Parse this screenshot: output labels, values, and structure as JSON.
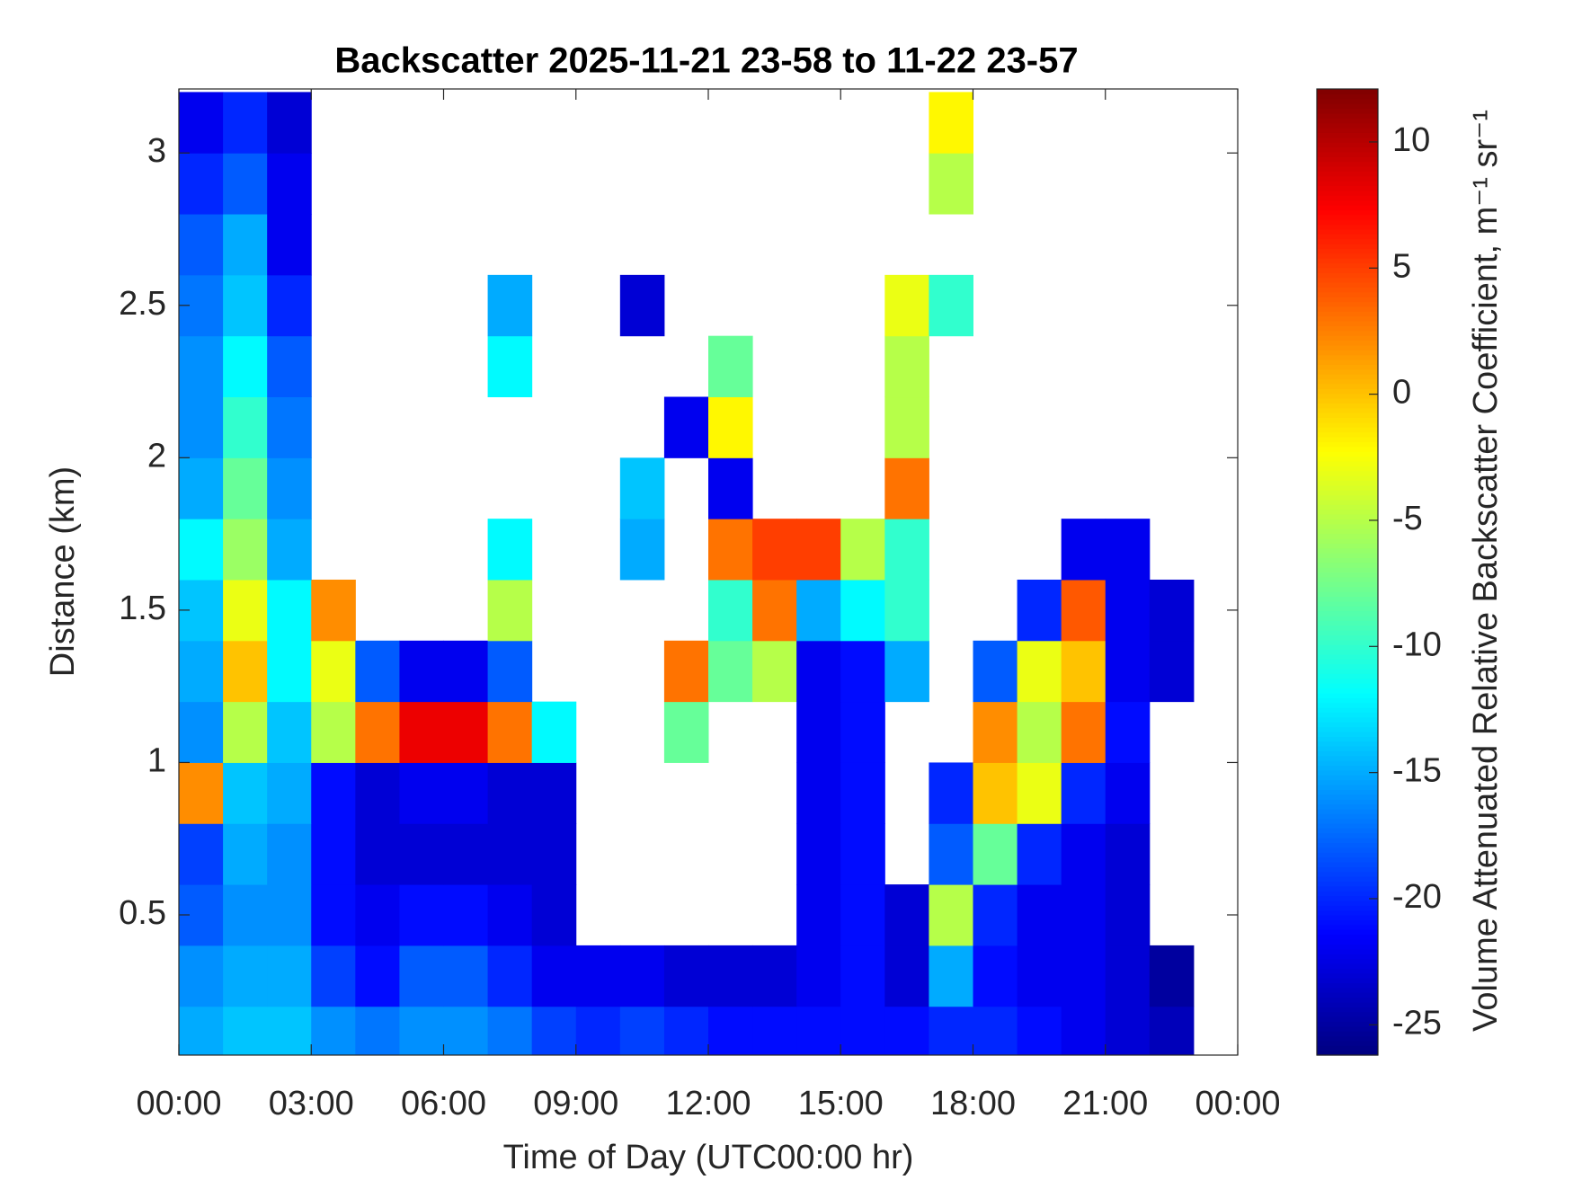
{
  "chart_data": {
    "type": "heatmap",
    "title": "Backscatter 2025-11-21 23-58 to 11-22 23-57",
    "x_label": "Time of Day (UTC00:00 hr)",
    "y_label": "Distance (km)",
    "colorbar_label": "Volume Attenuated Relative Backscatter Coefficient, m⁻¹ sr⁻¹",
    "colormap": "jet",
    "x": [
      0.5,
      1.5,
      2.5,
      3.5,
      4.5,
      5.5,
      6.5,
      7.5,
      8.5,
      9.5,
      10.5,
      11.5,
      12.5,
      13.5,
      14.5,
      15.5,
      16.5,
      17.5,
      18.5,
      19.5,
      20.5,
      21.5,
      22.5,
      23.5
    ],
    "y": [
      0.1,
      0.3,
      0.5,
      0.7,
      0.9,
      1.1,
      1.3,
      1.5,
      1.7,
      1.9,
      2.1,
      2.3,
      2.5,
      2.7,
      2.9,
      3.1
    ],
    "values": [
      [
        -15,
        -14,
        -14,
        -16,
        -17,
        -16,
        -16,
        -17,
        -19,
        -20,
        -19,
        -20,
        -21,
        -21,
        -21,
        -21,
        -21,
        -20,
        -20,
        -21,
        -22,
        -23,
        -24,
        null
      ],
      [
        -16,
        -15,
        -15,
        -19,
        -21,
        -18,
        -18,
        -20,
        -22,
        -22,
        -22,
        -23,
        -23,
        -23,
        -22,
        -21,
        -23,
        -15,
        -21,
        -22,
        -22,
        -23,
        -25,
        null
      ],
      [
        -18,
        -16,
        -16,
        -21,
        -22,
        -21,
        -21,
        -22,
        -23,
        null,
        null,
        null,
        null,
        null,
        -22,
        -21,
        -23,
        -5,
        -20,
        -22,
        -22,
        -23,
        null,
        null
      ],
      [
        -19,
        -15,
        -16,
        -21,
        -23,
        -23,
        -23,
        -23,
        -23,
        null,
        null,
        null,
        null,
        null,
        -22,
        -21,
        null,
        -18,
        -8,
        -20,
        -22,
        -23,
        null,
        null
      ],
      [
        2,
        -14,
        -15,
        -21,
        -23,
        -22,
        -22,
        -23,
        -23,
        null,
        null,
        null,
        null,
        null,
        -22,
        -21,
        null,
        -20,
        0,
        -3,
        -20,
        -22,
        null,
        null
      ],
      [
        -16,
        -5,
        -14,
        -5,
        3,
        8,
        8,
        3,
        -12,
        null,
        null,
        -8,
        null,
        null,
        -22,
        -21,
        null,
        null,
        2,
        -5,
        3,
        -21,
        null,
        null
      ],
      [
        -15,
        0,
        -12,
        -3,
        -18,
        -22,
        -22,
        -18,
        null,
        null,
        null,
        3,
        -8,
        -5,
        -22,
        -21,
        -15,
        null,
        -18,
        -3,
        0,
        -22,
        -23,
        null
      ],
      [
        -14,
        -3,
        -12,
        2,
        null,
        null,
        null,
        -5,
        null,
        null,
        null,
        null,
        -10,
        3,
        -15,
        -12,
        -10,
        null,
        null,
        -20,
        4,
        -22,
        -23,
        null
      ],
      [
        -12,
        -6,
        -15,
        null,
        null,
        null,
        null,
        -12,
        null,
        null,
        -15,
        null,
        3,
        5,
        5,
        -5,
        -10,
        null,
        null,
        null,
        -22,
        -22,
        null,
        null
      ],
      [
        -15,
        -8,
        -16,
        null,
        null,
        null,
        null,
        null,
        null,
        null,
        -14,
        null,
        -22,
        null,
        null,
        null,
        3,
        null,
        null,
        null,
        null,
        null,
        null,
        null
      ],
      [
        -16,
        -10,
        -17,
        null,
        null,
        null,
        null,
        null,
        null,
        null,
        null,
        -22,
        -2,
        null,
        null,
        null,
        -5,
        null,
        null,
        null,
        null,
        null,
        null,
        null
      ],
      [
        -16,
        -12,
        -18,
        null,
        null,
        null,
        null,
        -12,
        null,
        null,
        null,
        null,
        -8,
        null,
        null,
        null,
        -5,
        null,
        null,
        null,
        null,
        null,
        null,
        null
      ],
      [
        -17,
        -14,
        -20,
        null,
        null,
        null,
        null,
        -15,
        null,
        null,
        -23,
        null,
        null,
        null,
        null,
        null,
        -3,
        -10,
        null,
        null,
        null,
        null,
        null,
        null
      ],
      [
        -18,
        -15,
        -22,
        null,
        null,
        null,
        null,
        null,
        null,
        null,
        null,
        null,
        null,
        null,
        null,
        null,
        null,
        null,
        null,
        null,
        null,
        null,
        null,
        null
      ],
      [
        -20,
        -18,
        -22,
        null,
        null,
        null,
        null,
        null,
        null,
        null,
        null,
        null,
        null,
        null,
        null,
        null,
        null,
        -5,
        null,
        null,
        null,
        null,
        null,
        null
      ],
      [
        -22,
        -20,
        -23,
        null,
        null,
        null,
        null,
        null,
        null,
        null,
        null,
        null,
        null,
        null,
        null,
        null,
        null,
        -2,
        null,
        null,
        null,
        null,
        null,
        null
      ]
    ],
    "xlim": [
      0,
      24
    ],
    "xticks": [
      {
        "value": 0,
        "label": "00:00"
      },
      {
        "value": 3,
        "label": "03:00"
      },
      {
        "value": 6,
        "label": "06:00"
      },
      {
        "value": 9,
        "label": "09:00"
      },
      {
        "value": 12,
        "label": "12:00"
      },
      {
        "value": 15,
        "label": "15:00"
      },
      {
        "value": 18,
        "label": "18:00"
      },
      {
        "value": 21,
        "label": "21:00"
      },
      {
        "value": 24,
        "label": "00:00"
      }
    ],
    "ylim": [
      0.04,
      3.21
    ],
    "yticks": [
      0.5,
      1,
      1.5,
      2,
      2.5,
      3
    ],
    "clim": [
      -26.2,
      12.1
    ],
    "cticks": [
      -25,
      -20,
      -15,
      -10,
      -5,
      0,
      5,
      10
    ],
    "grid": false
  }
}
